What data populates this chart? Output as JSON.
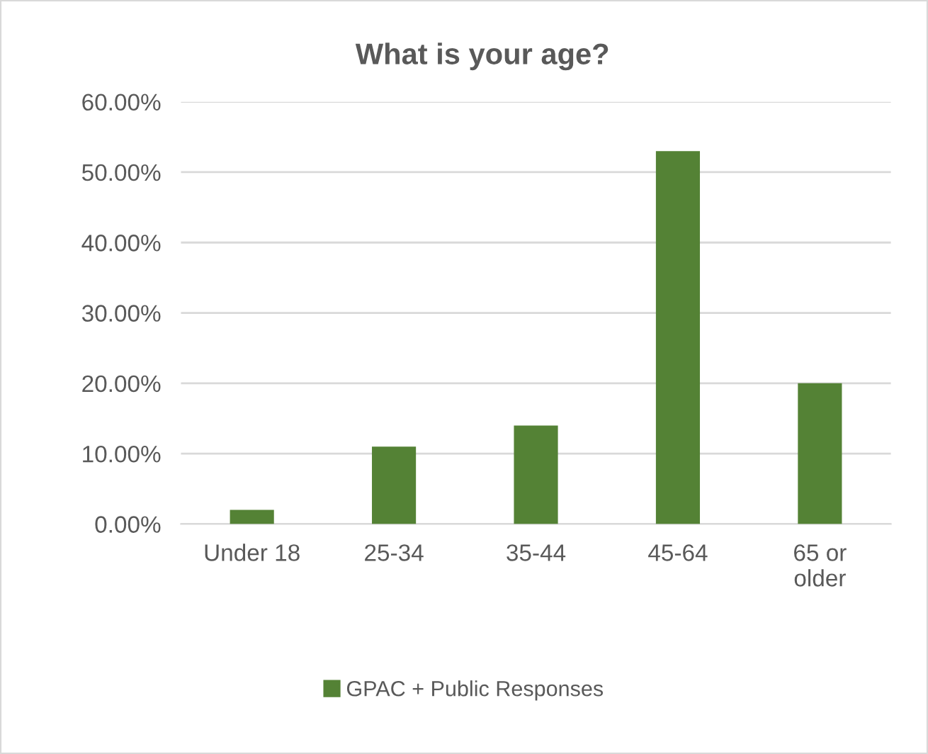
{
  "chart_data": {
    "type": "bar",
    "title": "What is your age?",
    "categories": [
      "Under 18",
      "25-34",
      "35-44",
      "45-64",
      "65 or\nolder"
    ],
    "series": [
      {
        "name": "GPAC + Public Responses",
        "color": "#548235",
        "values": [
          2,
          11,
          14,
          53,
          20
        ]
      }
    ],
    "ylim": [
      0,
      60
    ],
    "yticks": [
      {
        "value": 0,
        "label": "0.00%"
      },
      {
        "value": 10,
        "label": "10.00%"
      },
      {
        "value": 20,
        "label": "20.00%"
      },
      {
        "value": 30,
        "label": "30.00%"
      },
      {
        "value": 40,
        "label": "40.00%"
      },
      {
        "value": 50,
        "label": "50.00%"
      },
      {
        "value": 60,
        "label": "60.00%"
      }
    ],
    "grid": "y",
    "legend": "bottom"
  }
}
